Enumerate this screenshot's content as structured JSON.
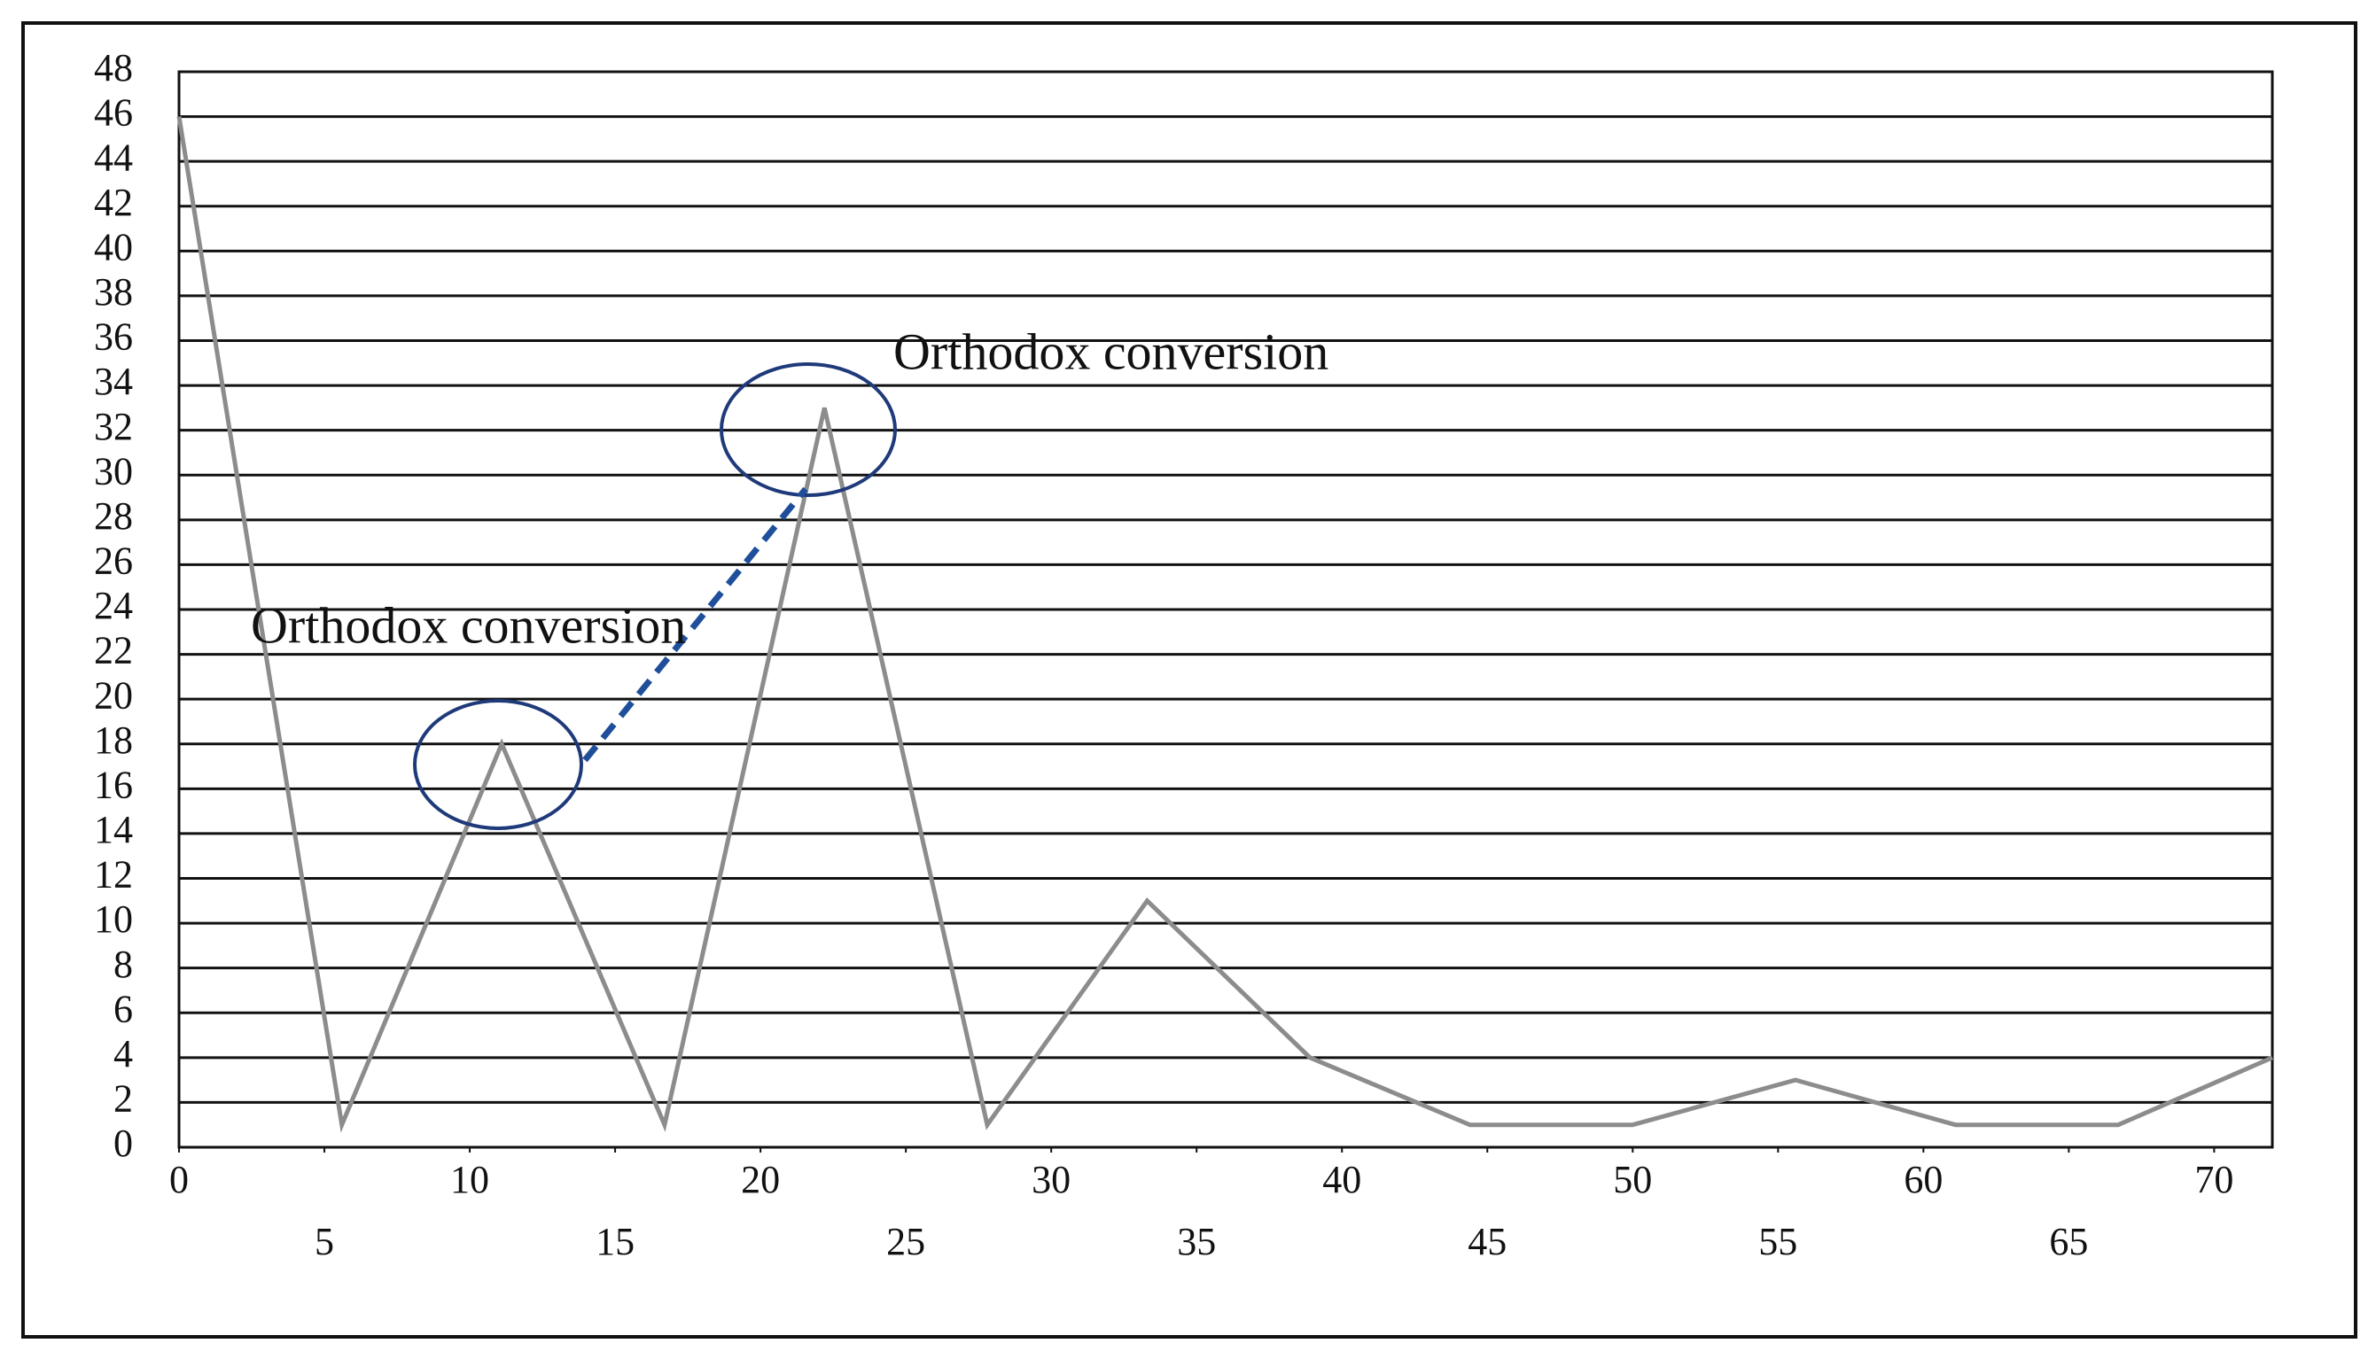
{
  "chart_data": {
    "type": "line",
    "x": [
      0,
      5.6,
      11.1,
      16.7,
      22.2,
      27.8,
      33.3,
      38.9,
      44.4,
      50,
      55.6,
      61.1,
      66.7,
      72
    ],
    "series": [
      {
        "color": "#8c8c8c",
        "values": [
          46,
          1,
          18,
          1,
          33,
          1,
          11,
          4,
          1,
          1,
          3,
          1,
          1,
          4
        ]
      }
    ],
    "xlim": [
      0,
      72
    ],
    "xticks": [
      0,
      5,
      10,
      15,
      20,
      25,
      30,
      35,
      40,
      45,
      50,
      55,
      60,
      65,
      70
    ],
    "ylim": [
      0,
      48
    ],
    "yticks": [
      0,
      2,
      4,
      6,
      8,
      10,
      12,
      14,
      16,
      18,
      20,
      22,
      24,
      26,
      28,
      30,
      32,
      34,
      36,
      38,
      40,
      42,
      44,
      46,
      48
    ],
    "grid": true,
    "annotations": [
      {
        "text": "Orthodox conversion"
      },
      {
        "text": "Orthodox conversion"
      }
    ]
  }
}
